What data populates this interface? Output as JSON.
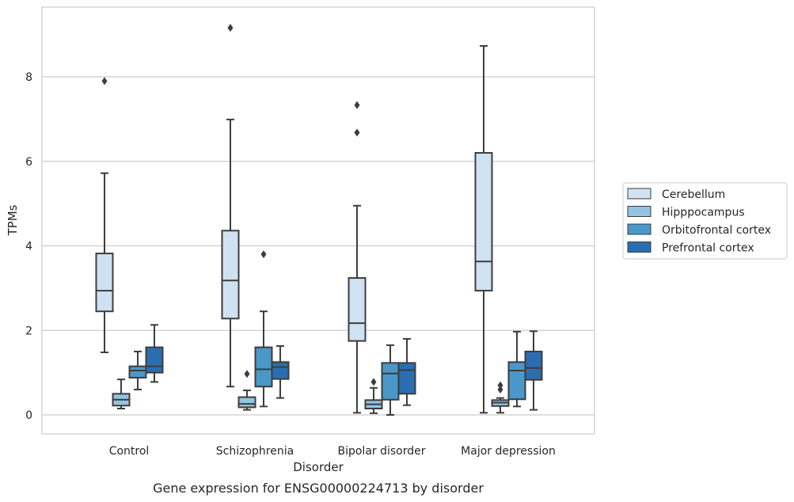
{
  "chart_data": {
    "type": "box",
    "caption": "Gene expression for ENSG00000224713 by disorder",
    "xlabel": "Disorder",
    "ylabel": "TPMs",
    "ylim": [
      -0.45,
      9.65
    ],
    "yticks": [
      0,
      2,
      4,
      6,
      8
    ],
    "grid": "horizontal",
    "legend_position": "right",
    "categories": [
      "Control",
      "Schizophrenia",
      "Bipolar disorder",
      "Major depression"
    ],
    "series": [
      {
        "name": "Cerebellum",
        "color": "#d0e1f2",
        "boxes": [
          {
            "whisker_low": 1.48,
            "q1": 2.45,
            "median": 2.94,
            "q3": 3.82,
            "whisker_high": 5.72,
            "outliers": [
              7.9
            ]
          },
          {
            "whisker_low": 0.67,
            "q1": 2.28,
            "median": 3.18,
            "q3": 4.36,
            "whisker_high": 6.99,
            "outliers": [
              9.16
            ]
          },
          {
            "whisker_low": 0.05,
            "q1": 1.75,
            "median": 2.17,
            "q3": 3.24,
            "whisker_high": 4.95,
            "outliers": [
              6.68,
              7.33
            ]
          },
          {
            "whisker_low": 0.05,
            "q1": 2.94,
            "median": 3.63,
            "q3": 6.2,
            "whisker_high": 8.73,
            "outliers": []
          }
        ]
      },
      {
        "name": "Hipppocampus",
        "color": "#94c4df",
        "boxes": [
          {
            "whisker_low": 0.15,
            "q1": 0.22,
            "median": 0.36,
            "q3": 0.5,
            "whisker_high": 0.84,
            "outliers": []
          },
          {
            "whisker_low": 0.12,
            "q1": 0.18,
            "median": 0.26,
            "q3": 0.42,
            "whisker_high": 0.58,
            "outliers": [
              0.97
            ]
          },
          {
            "whisker_low": 0.04,
            "q1": 0.15,
            "median": 0.25,
            "q3": 0.35,
            "whisker_high": 0.64,
            "outliers": [
              0.78
            ]
          },
          {
            "whisker_low": 0.05,
            "q1": 0.21,
            "median": 0.29,
            "q3": 0.35,
            "whisker_high": 0.4,
            "outliers": [
              0.6,
              0.7
            ]
          }
        ]
      },
      {
        "name": "Orbitofrontal cortex",
        "color": "#4a98c9",
        "boxes": [
          {
            "whisker_low": 0.6,
            "q1": 0.88,
            "median": 1.05,
            "q3": 1.15,
            "whisker_high": 1.5,
            "outliers": []
          },
          {
            "whisker_low": 0.2,
            "q1": 0.67,
            "median": 1.08,
            "q3": 1.6,
            "whisker_high": 2.45,
            "outliers": [
              3.8
            ]
          },
          {
            "whisker_low": 0.0,
            "q1": 0.36,
            "median": 0.98,
            "q3": 1.23,
            "whisker_high": 1.65,
            "outliers": []
          },
          {
            "whisker_low": 0.2,
            "q1": 0.37,
            "median": 1.05,
            "q3": 1.25,
            "whisker_high": 1.97,
            "outliers": []
          }
        ]
      },
      {
        "name": "Prefrontal cortex",
        "color": "#2b6eb0",
        "boxes": [
          {
            "whisker_low": 0.78,
            "q1": 1.0,
            "median": 1.15,
            "q3": 1.6,
            "whisker_high": 2.13,
            "outliers": []
          },
          {
            "whisker_low": 0.4,
            "q1": 0.85,
            "median": 1.13,
            "q3": 1.25,
            "whisker_high": 1.63,
            "outliers": []
          },
          {
            "whisker_low": 0.23,
            "q1": 0.5,
            "median": 1.06,
            "q3": 1.23,
            "whisker_high": 1.8,
            "outliers": []
          },
          {
            "whisker_low": 0.12,
            "q1": 0.83,
            "median": 1.11,
            "q3": 1.5,
            "whisker_high": 1.98,
            "outliers": []
          }
        ]
      }
    ]
  }
}
